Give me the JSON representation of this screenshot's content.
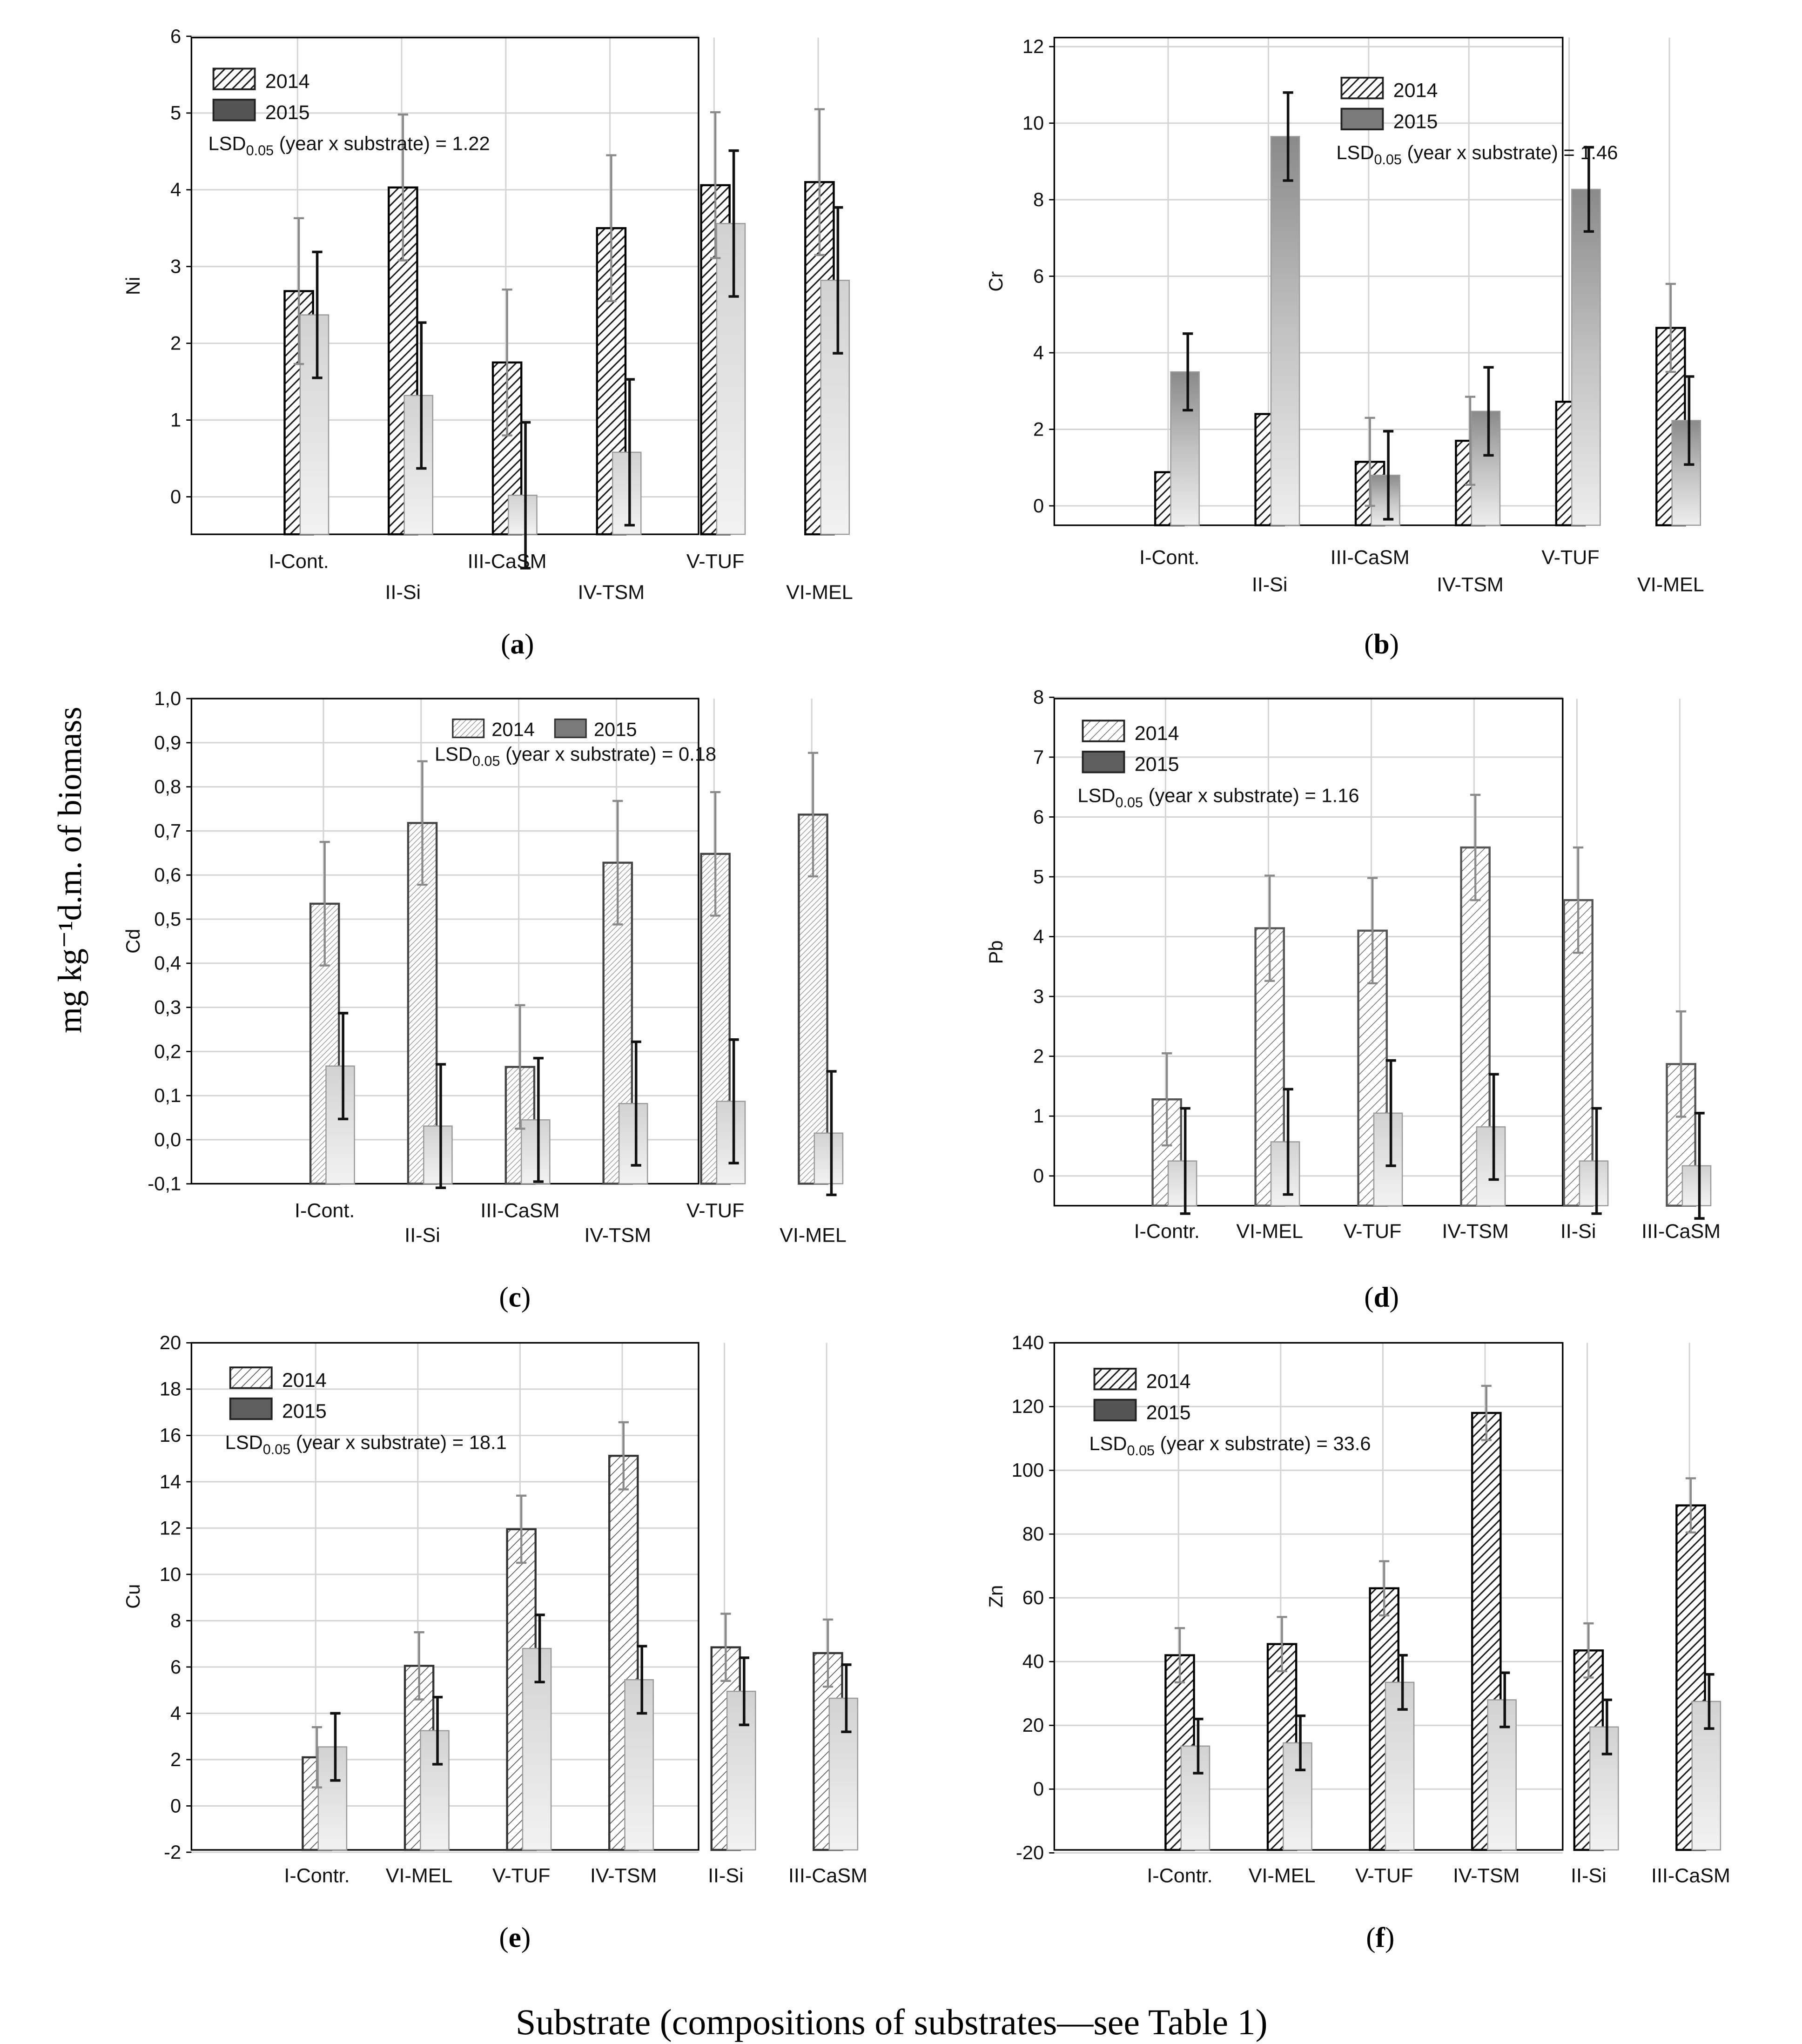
{
  "y_axis_common_label": "mg kg⁻¹d.m. of biomass",
  "x_axis_common_label": "Substrate (compositions of substrates—see Table 1)",
  "series_names": [
    "2014",
    "2015"
  ],
  "chart_data": [
    {
      "panel": "(a)",
      "type": "bar",
      "ylabel": "Ni",
      "ylim": [
        -0.5,
        6
      ],
      "yticks": [
        "0",
        "1",
        "2",
        "3",
        "4",
        "5",
        "6"
      ],
      "categories": [
        "I-Cont.",
        "II-Si",
        "III-CaSM",
        "IV-TSM",
        "V-TUF",
        "VI-MEL"
      ],
      "series": [
        {
          "name": "2014",
          "values": [
            2.68,
            4.03,
            1.75,
            3.5,
            4.06,
            4.1
          ],
          "errors": [
            0.95,
            0.95,
            0.95,
            0.95,
            0.95,
            0.95
          ]
        },
        {
          "name": "2015",
          "values": [
            2.37,
            1.32,
            0.02,
            0.58,
            3.56,
            2.82
          ],
          "errors": [
            0.82,
            0.95,
            0.95,
            0.95,
            0.95,
            0.95
          ]
        }
      ],
      "lsd": "LSD",
      "lsd_sub": "0.05",
      "lsd_rest": " (year x substrate) = 1.22",
      "legend_position": "top-left"
    },
    {
      "panel": "(b)",
      "type": "bar",
      "ylabel": "Cr",
      "ylim": [
        -0.5,
        12
      ],
      "yticks": [
        "0",
        "2",
        "4",
        "6",
        "8",
        "10",
        "12"
      ],
      "categories": [
        "I-Cont.",
        "II-Si",
        "III-CaSM",
        "IV-TSM",
        "V-TUF",
        "VI-MEL"
      ],
      "series": [
        {
          "name": "2014",
          "values": [
            0.88,
            2.4,
            1.15,
            1.7,
            2.72,
            4.65
          ],
          "errors": [
            0,
            0,
            1.15,
            1.15,
            0,
            1.15
          ]
        },
        {
          "name": "2015",
          "values": [
            3.5,
            9.65,
            0.8,
            2.47,
            8.27,
            2.23
          ],
          "errors": [
            1.0,
            1.15,
            1.15,
            1.15,
            1.1,
            1.15
          ]
        }
      ],
      "lsd": "LSD",
      "lsd_sub": "0.05",
      "lsd_rest": " (year x substrate) = 1.46",
      "legend_position": "top-center"
    },
    {
      "panel": "(c)",
      "type": "bar",
      "ylabel": "Cd",
      "ylim": [
        -0.1,
        1.0
      ],
      "yticks": [
        "-0,1",
        "0,0",
        "0,1",
        "0,2",
        "0,3",
        "0,4",
        "0,5",
        "0,6",
        "0,7",
        "0,8",
        "0,9",
        "1,0"
      ],
      "categories": [
        "I-Cont.",
        "II-Si",
        "III-CaSM",
        "IV-TSM",
        "V-TUF",
        "VI-MEL"
      ],
      "series": [
        {
          "name": "2014",
          "values": [
            0.535,
            0.718,
            0.165,
            0.628,
            0.648,
            0.737
          ],
          "errors": [
            0.14,
            0.14,
            0.14,
            0.14,
            0.14,
            0.14
          ]
        },
        {
          "name": "2015",
          "values": [
            0.167,
            0.031,
            0.045,
            0.082,
            0.087,
            0.015
          ],
          "errors": [
            0.12,
            0.14,
            0.14,
            0.14,
            0.14,
            0.14
          ]
        }
      ],
      "lsd": "LSD",
      "lsd_sub": "0.05",
      "lsd_rest": " (year x substrate) = 0.18",
      "legend_position": "top-center"
    },
    {
      "panel": "(d)",
      "type": "bar",
      "ylabel": "Pb",
      "ylim": [
        -0.5,
        8
      ],
      "yticks": [
        "0",
        "1",
        "2",
        "3",
        "4",
        "5",
        "6",
        "7",
        "8"
      ],
      "categories": [
        "I-Contr.",
        "VI-MEL",
        "V-TUF",
        "IV-TSM",
        "II-Si",
        "III-CaSM"
      ],
      "series": [
        {
          "name": "2014",
          "values": [
            1.28,
            4.14,
            4.1,
            5.49,
            4.61,
            1.87
          ],
          "errors": [
            0.77,
            0.88,
            0.88,
            0.88,
            0.88,
            0.88
          ]
        },
        {
          "name": "2015",
          "values": [
            0.25,
            0.57,
            1.05,
            0.82,
            0.25,
            0.17
          ],
          "errors": [
            0.88,
            0.88,
            0.88,
            0.88,
            0.88,
            0.88
          ]
        }
      ],
      "lsd": "LSD",
      "lsd_sub": "0.05",
      "lsd_rest": " (year x substrate) = 1.16",
      "legend_position": "top-left"
    },
    {
      "panel": "(e)",
      "type": "bar",
      "ylabel": "Cu",
      "ylim": [
        -2,
        20
      ],
      "yticks": [
        "-2",
        "0",
        "2",
        "4",
        "6",
        "8",
        "10",
        "12",
        "14",
        "16",
        "18",
        "20"
      ],
      "categories": [
        "I-Contr.",
        "VI-MEL",
        "V-TUF",
        "IV-TSM",
        "II-Si",
        "III-CaSM"
      ],
      "series": [
        {
          "name": "2014",
          "values": [
            2.1,
            6.05,
            11.95,
            15.12,
            6.85,
            6.6
          ],
          "errors": [
            1.3,
            1.45,
            1.45,
            1.45,
            1.45,
            1.45
          ]
        },
        {
          "name": "2015",
          "values": [
            2.55,
            3.25,
            6.8,
            5.45,
            4.95,
            4.65
          ],
          "errors": [
            1.45,
            1.45,
            1.45,
            1.45,
            1.45,
            1.45
          ]
        }
      ],
      "lsd": "LSD",
      "lsd_sub": "0.05",
      "lsd_rest": " (year x substrate) = 18.1",
      "legend_position": "top-left"
    },
    {
      "panel": "(f)",
      "type": "bar",
      "ylabel": "Zn",
      "ylim": [
        -20,
        140
      ],
      "yticks": [
        "-20",
        "0",
        "20",
        "40",
        "60",
        "80",
        "100",
        "120",
        "140"
      ],
      "categories": [
        "I-Contr.",
        "VI-MEL",
        "V-TUF",
        "IV-TSM",
        "II-Si",
        "III-CaSM"
      ],
      "series": [
        {
          "name": "2014",
          "values": [
            42,
            45.5,
            63,
            118,
            43.5,
            89
          ],
          "errors": [
            8.5,
            8.5,
            8.5,
            8.5,
            8.5,
            8.5
          ]
        },
        {
          "name": "2015",
          "values": [
            13.5,
            14.5,
            33.5,
            28,
            19.5,
            27.5
          ],
          "errors": [
            8.5,
            8.5,
            8.5,
            8.5,
            8.5,
            8.5
          ]
        }
      ],
      "lsd": "LSD",
      "lsd_sub": "0.05",
      "lsd_rest": " (year x substrate) = 33.6",
      "legend_position": "top-left"
    }
  ]
}
